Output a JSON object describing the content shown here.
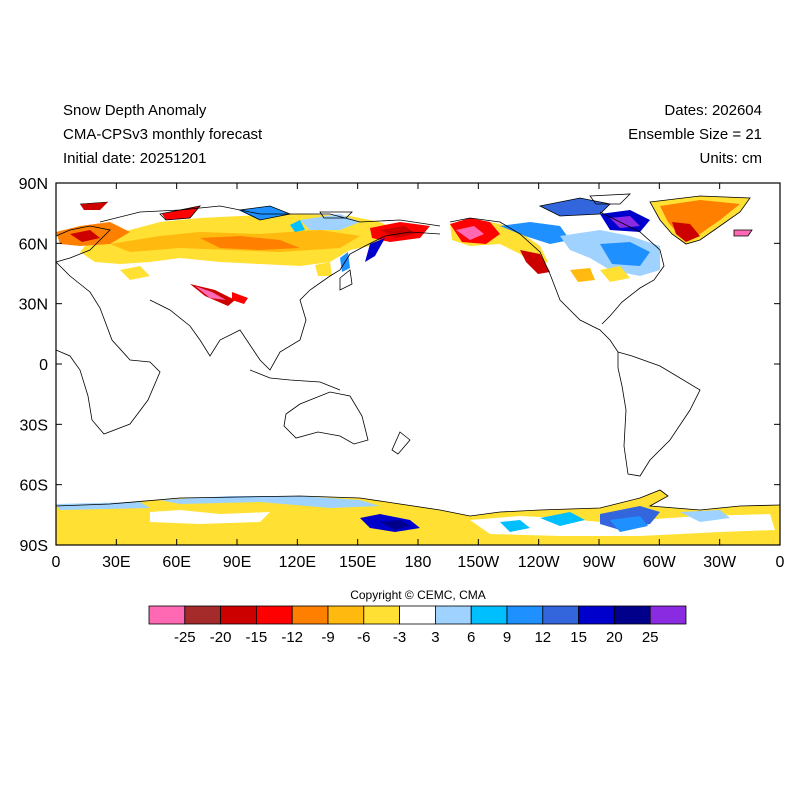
{
  "header": {
    "title": "Snow Depth Anomaly",
    "model": "CMA-CPSv3 monthly forecast",
    "initial_date": "Initial date: 20251201",
    "dates": "Dates: 202604",
    "ensemble": "Ensemble Size = 21",
    "units": "Units: cm"
  },
  "map": {
    "lat_ticks": [
      "90N",
      "60N",
      "30N",
      "0",
      "30S",
      "60S",
      "90S"
    ],
    "lon_ticks": [
      "0",
      "30E",
      "60E",
      "90E",
      "120E",
      "150E",
      "180",
      "150W",
      "120W",
      "90W",
      "60W",
      "30W",
      "0"
    ]
  },
  "copyright": "Copyright © CEMC, CMA",
  "legend": {
    "labels": [
      "-25",
      "-20",
      "-15",
      "-12",
      "-9",
      "-6",
      "-3",
      "3",
      "6",
      "9",
      "12",
      "15",
      "20",
      "25"
    ],
    "colors": [
      "#ff69b4",
      "#a52a2a",
      "#cd0000",
      "#ff0000",
      "#ff7f00",
      "#ffb90f",
      "#ffe033",
      "#ffffff",
      "#a0d2ff",
      "#00bfff",
      "#1e90ff",
      "#3366dd",
      "#0000cd",
      "#00008b",
      "#8a2be2"
    ]
  }
}
